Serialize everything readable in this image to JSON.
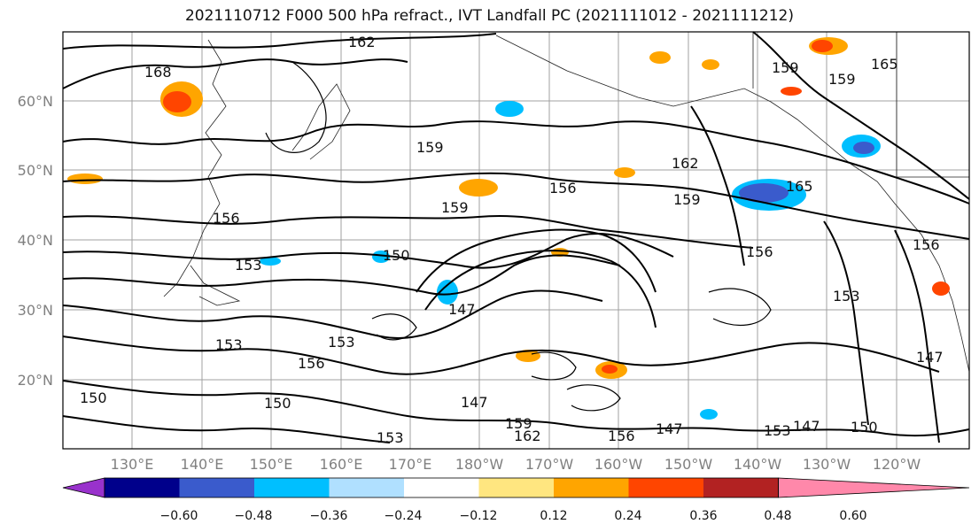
{
  "figure": {
    "title": "2021110712 F000 500 hPa refract., IVT Landfall PC (2021111012 - 2021111212)"
  },
  "map": {
    "lat_labels": [
      "60°N",
      "50°N",
      "40°N",
      "30°N",
      "20°N"
    ],
    "lon_labels": [
      "130°E",
      "140°E",
      "150°E",
      "160°E",
      "170°E",
      "180°W",
      "170°W",
      "160°W",
      "150°W",
      "140°W",
      "130°W",
      "120°W"
    ],
    "contour_labels": [
      "162",
      "168",
      "159",
      "165",
      "159",
      "162",
      "156",
      "159",
      "165",
      "159",
      "156",
      "153",
      "150",
      "159",
      "153",
      "150",
      "147",
      "153",
      "156",
      "153",
      "147",
      "159",
      "162",
      "156",
      "147",
      "153",
      "147",
      "150",
      "147",
      "150",
      "156",
      "156",
      "153"
    ],
    "shading_colors": {
      "orange": "#ffa500",
      "dark_orange": "#ff4500",
      "cyan": "#00bfff",
      "light_blue": "#add8ff",
      "blue": "#3a5bcc",
      "yellow": "#ffe680"
    }
  },
  "colorbar": {
    "ticks": [
      "−0.60",
      "−0.48",
      "−0.36",
      "−0.24",
      "−0.12",
      "0.12",
      "0.24",
      "0.36",
      "0.48",
      "0.60"
    ],
    "colors": [
      "#9932cc",
      "#00008b",
      "#3a5bcc",
      "#00bfff",
      "#b0e0ff",
      "#ffffff",
      "#ffe680",
      "#ffa500",
      "#ff4500",
      "#b22222",
      "#ff88aa"
    ]
  }
}
